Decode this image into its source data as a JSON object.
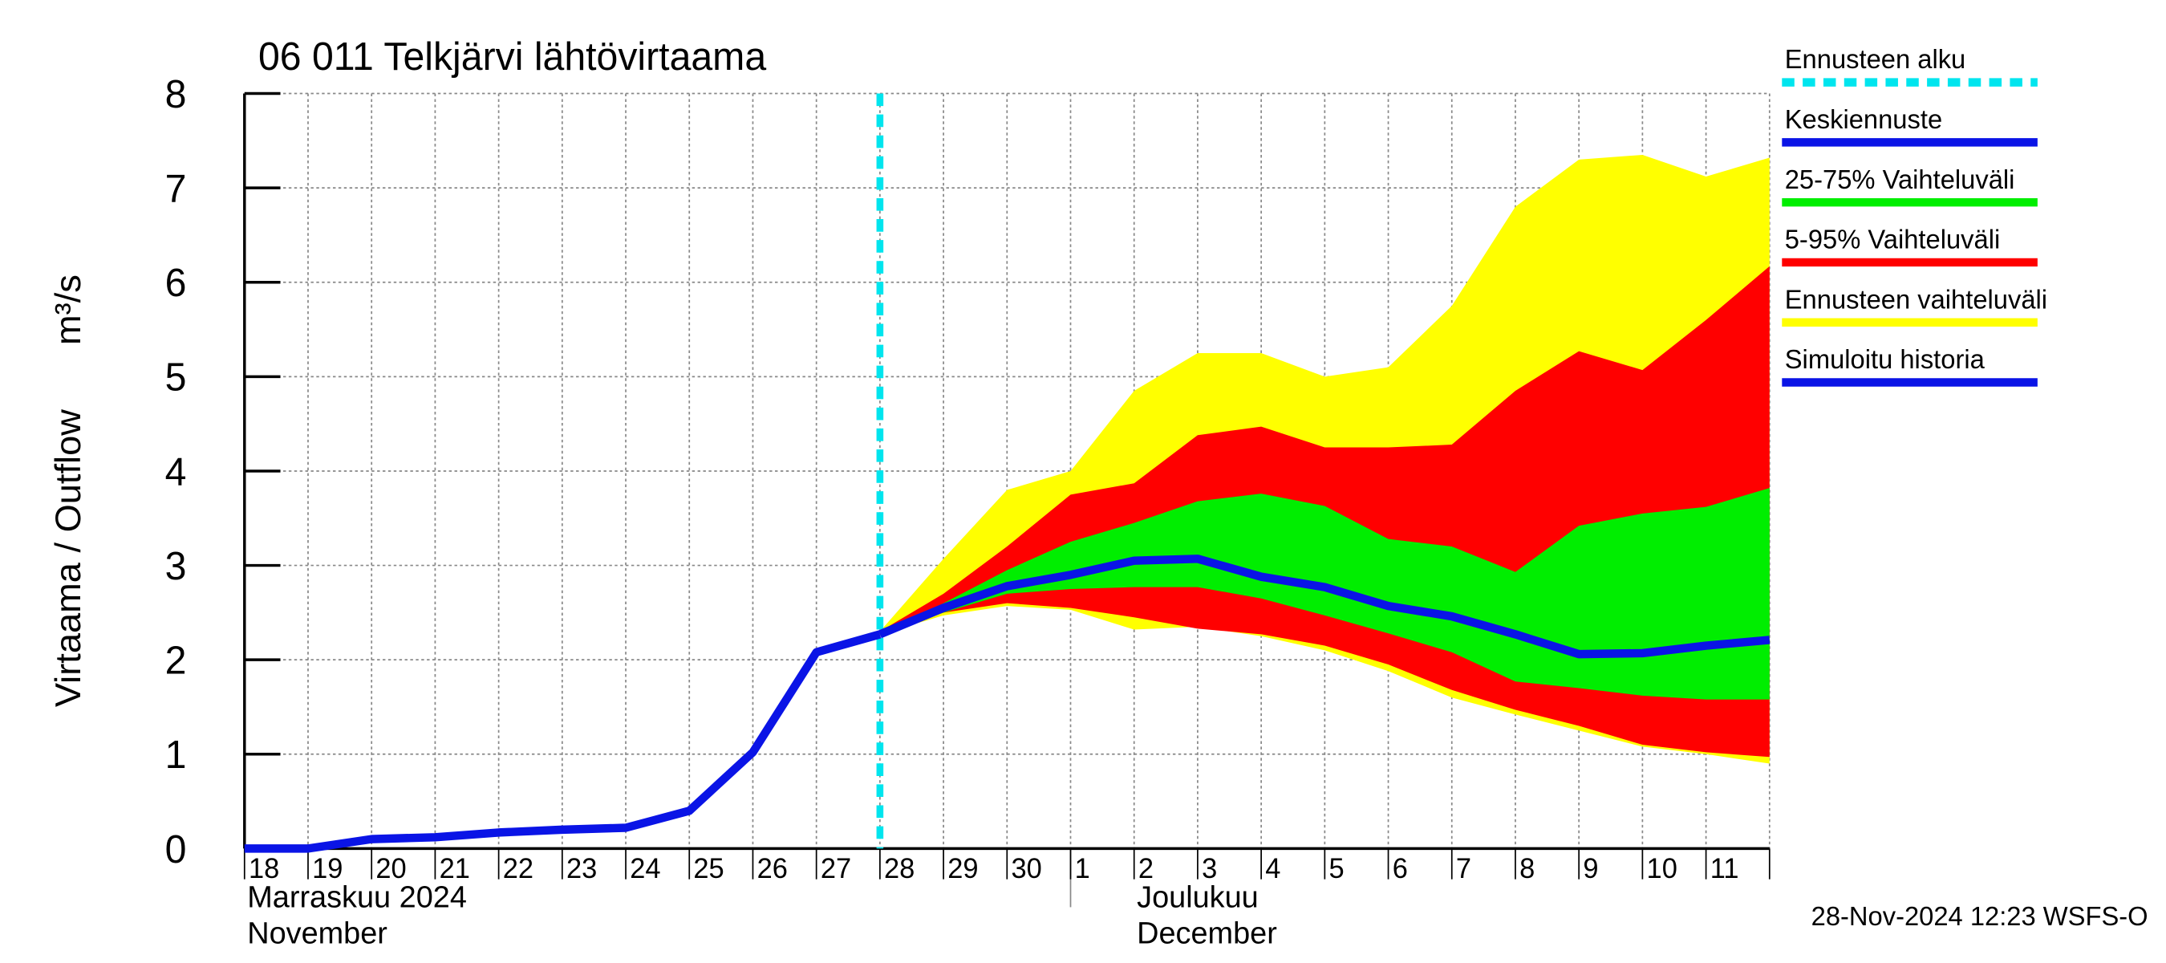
{
  "chart_data": {
    "type": "line",
    "title": "06 011 Telkjärvi lähtövirtaama",
    "ylabel": "Virtaama / Outflow",
    "yunit": "m³/s",
    "categories": [
      "18",
      "19",
      "20",
      "21",
      "22",
      "23",
      "24",
      "25",
      "26",
      "27",
      "28",
      "29",
      "30",
      "1",
      "2",
      "3",
      "4",
      "5",
      "6",
      "7",
      "8",
      "9",
      "10",
      "11",
      null
    ],
    "month_labels": [
      {
        "line1": "Marraskuu 2024",
        "line2": "November"
      },
      {
        "line1": "Joulukuu",
        "line2": "December"
      }
    ],
    "timestamp": "28-Nov-2024 12:23 WSFS-O",
    "ylim": [
      0,
      8
    ],
    "yticks": [
      0,
      1,
      2,
      3,
      4,
      5,
      6,
      7,
      8
    ],
    "grid": true,
    "series": [
      {
        "name": "Ennusteen alku",
        "kind": "vline",
        "color": "#00e5ee",
        "at": "28"
      },
      {
        "name": "Keskiennuste",
        "kind": "line",
        "color": "#0a14e6",
        "values": [
          null,
          null,
          null,
          null,
          null,
          null,
          null,
          null,
          null,
          null,
          2.27,
          2.55,
          2.78,
          2.9,
          3.05,
          3.07,
          2.88,
          2.77,
          2.57,
          2.46,
          2.27,
          2.06,
          2.07,
          2.15,
          2.21
        ]
      },
      {
        "name": "25-75% Vaihteluväli",
        "kind": "band",
        "color": "#00ee00",
        "upper": [
          null,
          null,
          null,
          null,
          null,
          null,
          null,
          null,
          null,
          null,
          2.27,
          2.6,
          2.95,
          3.25,
          3.45,
          3.68,
          3.76,
          3.63,
          3.28,
          3.2,
          2.93,
          3.42,
          3.55,
          3.62,
          3.82
        ],
        "lower": [
          null,
          null,
          null,
          null,
          null,
          null,
          null,
          null,
          null,
          null,
          2.27,
          2.5,
          2.7,
          2.75,
          2.77,
          2.77,
          2.65,
          2.47,
          2.28,
          2.08,
          1.77,
          1.7,
          1.62,
          1.58,
          1.58
        ]
      },
      {
        "name": "5-95% Vaihteluväli",
        "kind": "band",
        "color": "#ff0000",
        "upper": [
          null,
          null,
          null,
          null,
          null,
          null,
          null,
          null,
          null,
          null,
          2.3,
          2.7,
          3.2,
          3.75,
          3.87,
          4.38,
          4.47,
          4.25,
          4.25,
          4.28,
          4.85,
          5.27,
          5.07,
          5.6,
          6.17
        ],
        "lower": [
          null,
          null,
          null,
          null,
          null,
          null,
          null,
          null,
          null,
          null,
          2.27,
          2.5,
          2.6,
          2.55,
          2.45,
          2.33,
          2.27,
          2.15,
          1.95,
          1.68,
          1.47,
          1.3,
          1.1,
          1.02,
          0.97
        ]
      },
      {
        "name": "Ennusteen vaihteluväli",
        "kind": "band",
        "color": "#ffff00",
        "upper": [
          null,
          null,
          null,
          null,
          null,
          null,
          null,
          null,
          null,
          null,
          2.3,
          3.07,
          3.8,
          4.0,
          4.85,
          5.25,
          5.25,
          5.0,
          5.1,
          5.75,
          6.8,
          7.3,
          7.35,
          7.12,
          7.32
        ],
        "lower": [
          null,
          null,
          null,
          null,
          null,
          null,
          null,
          null,
          null,
          null,
          2.27,
          2.47,
          2.57,
          2.53,
          2.32,
          2.35,
          2.25,
          2.1,
          1.88,
          1.6,
          1.42,
          1.25,
          1.08,
          1.0,
          0.9
        ]
      },
      {
        "name": "Simuloitu historia",
        "kind": "line",
        "color": "#0a14e6",
        "values": [
          0,
          0,
          0.1,
          0.12,
          0.17,
          0.2,
          0.22,
          0.4,
          1.02,
          2.08,
          2.27,
          null,
          null,
          null,
          null,
          null,
          null,
          null,
          null,
          null,
          null,
          null,
          null,
          null,
          null
        ]
      }
    ]
  }
}
